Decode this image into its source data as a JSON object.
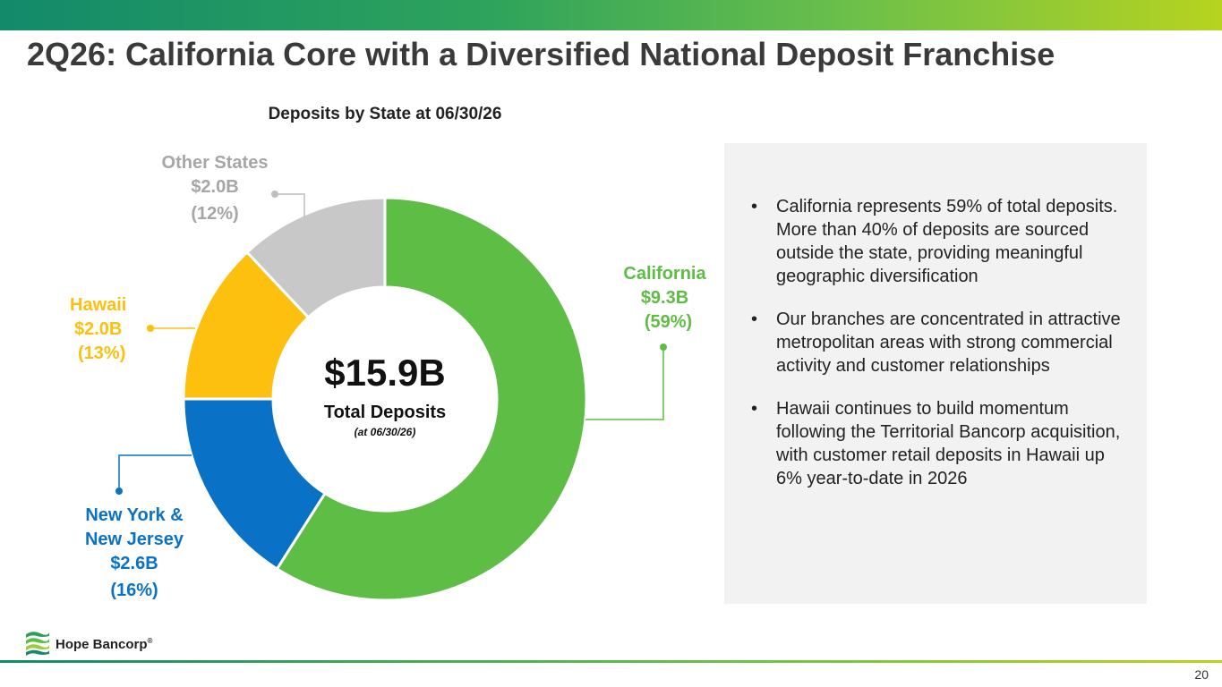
{
  "header": {
    "title": "2Q26: California Core with a Diversified National Deposit Franchise"
  },
  "chart_data": {
    "type": "pie",
    "variant": "donut",
    "title": "Deposits by State at 06/30/26",
    "center_value": "$15.9B",
    "center_label": "Total Deposits",
    "center_sublabel": "(at 06/30/26)",
    "slices": [
      {
        "name": "California",
        "amount_label": "$9.3B",
        "percent_label": "(59%)",
        "value": 59,
        "color": "#5dbd44"
      },
      {
        "name": "New York &",
        "name2": "New Jersey",
        "amount_label": "$2.6B",
        "percent_label": "(16%)",
        "value": 16,
        "color": "#0a72c6"
      },
      {
        "name": "Hawaii",
        "amount_label": "$2.0B",
        "percent_label": "(13%)",
        "value": 13,
        "color": "#fdc00f"
      },
      {
        "name": "Other States",
        "amount_label": "$2.0B",
        "percent_label": "(12%)",
        "value": 12,
        "color": "#c8c8c8"
      }
    ],
    "label_colors": {
      "California": "#5dbd44",
      "New York & New Jersey": "#0a72c6",
      "Hawaii": "#fdc00f",
      "Other States": "#a6a6a6"
    }
  },
  "info_box": {
    "bullets": [
      "California represents 59% of total deposits. More than 40% of deposits are sourced outside the state, providing meaningful geographic diversification",
      "Our branches are concentrated in attractive metropolitan areas with strong commercial activity and customer relationships",
      "Hawaii continues to build momentum following the Territorial Bancorp acquisition, with customer retail deposits in Hawaii up 6% year-to-date in 2026"
    ]
  },
  "footer": {
    "logo_text": "Hope Bancorp",
    "logo_mark": "®",
    "page_number": "20"
  }
}
